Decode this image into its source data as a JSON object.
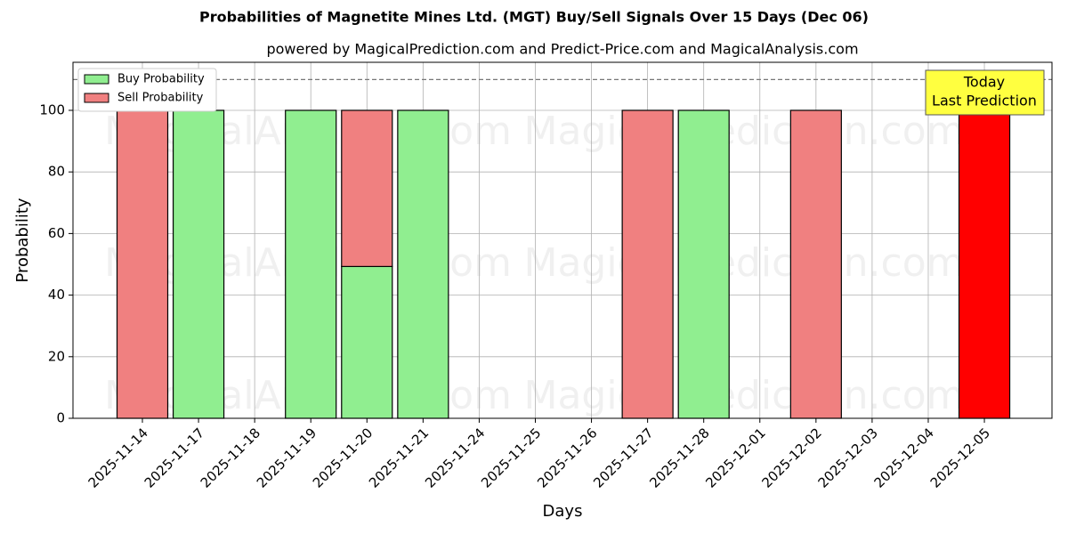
{
  "chart_data": {
    "type": "stacked_bar",
    "title": "Probabilities of Magnetite Mines Ltd. (MGT) Buy/Sell Signals Over 15 Days (Dec 06)",
    "subtitle": "powered by MagicalPrediction.com and Predict-Price.com and MagicalAnalysis.com",
    "x_label": "Days",
    "y_label": "Probability",
    "categories": [
      "2025-11-14",
      "2025-11-17",
      "2025-11-18",
      "2025-11-19",
      "2025-11-20",
      "2025-11-21",
      "2025-11-24",
      "2025-11-25",
      "2025-11-26",
      "2025-11-27",
      "2025-11-28",
      "2025-12-01",
      "2025-12-02",
      "2025-12-03",
      "2025-12-04",
      "2025-12-05"
    ],
    "series": [
      {
        "name": "Buy Probability",
        "color": "#90ee90",
        "values": [
          0,
          100,
          0,
          100,
          49.3,
          100,
          0,
          0,
          0,
          0,
          100,
          0,
          0,
          0,
          0,
          0
        ]
      },
      {
        "name": "Sell Probability",
        "color": "#f08080",
        "values": [
          100,
          0,
          0,
          0,
          50.7,
          0,
          0,
          0,
          0,
          100,
          0,
          0,
          100,
          0,
          0,
          100
        ]
      }
    ],
    "highlight_color": "#ff0000",
    "ylim": [
      0,
      115.6
    ],
    "yticks": [
      0,
      20,
      40,
      60,
      80,
      100
    ],
    "hline": 110,
    "grid": true,
    "legend": "upper-left",
    "annotation": [
      "Today",
      "Last Prediction"
    ],
    "watermarks": [
      "MagicalAnalysis.com",
      "MagicalPrediction.com"
    ]
  }
}
